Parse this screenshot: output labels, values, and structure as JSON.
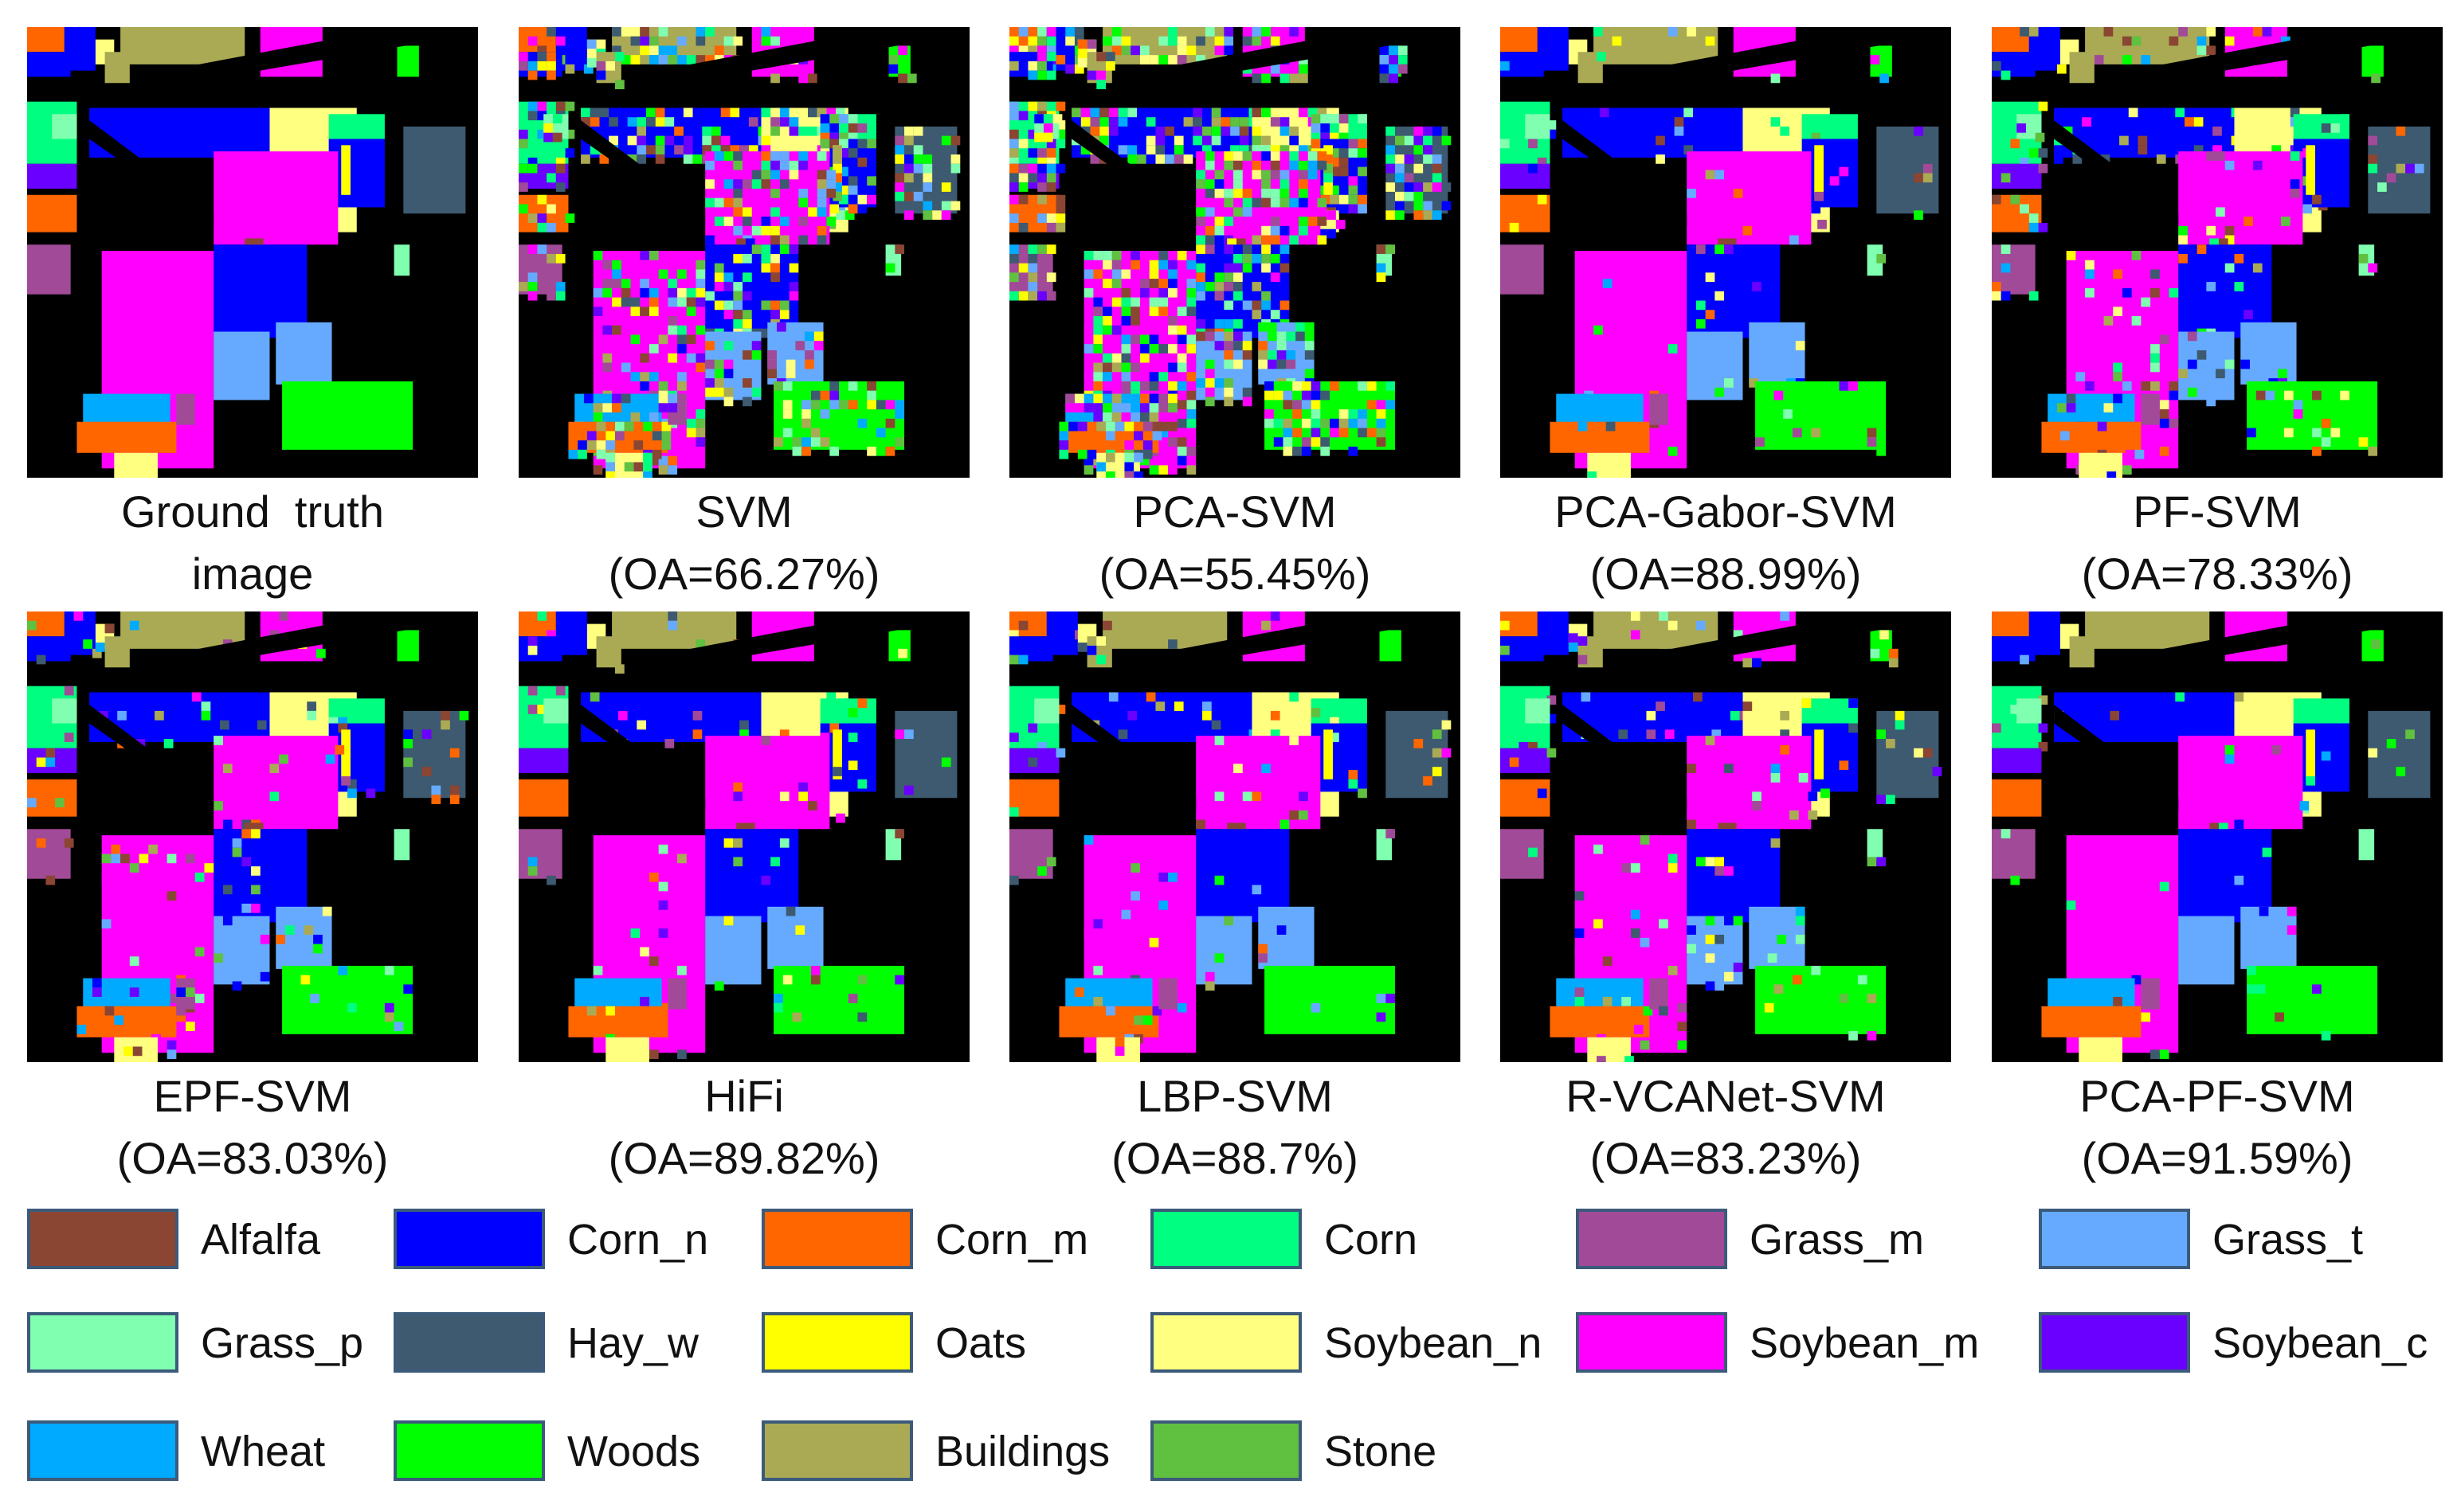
{
  "panels": [
    {
      "title": "Ground  truth",
      "sub": "image",
      "noise": 0
    },
    {
      "title": "SVM",
      "sub": "(OA=66.27%)",
      "noise": 0.45
    },
    {
      "title": "PCA-SVM",
      "sub": "(OA=55.45%)",
      "noise": 0.6
    },
    {
      "title": "PCA-Gabor-SVM",
      "sub": "(OA=88.99%)",
      "noise": 0.06
    },
    {
      "title": "PF-SVM",
      "sub": "(OA=78.33%)",
      "noise": 0.14
    },
    {
      "title": "EPF-SVM",
      "sub": "(OA=83.03%)",
      "noise": 0.1
    },
    {
      "title": "HiFi",
      "sub": "(OA=89.82%)",
      "noise": 0.06
    },
    {
      "title": "LBP-SVM",
      "sub": "(OA=88.7%)",
      "noise": 0.07
    },
    {
      "title": "R-VCANet-SVM",
      "sub": "(OA=83.23%)",
      "noise": 0.1
    },
    {
      "title": "PCA-PF-SVM",
      "sub": "(OA=91.59%)",
      "noise": 0.04
    }
  ],
  "legend": [
    {
      "label": "Alfalfa",
      "color": "#8b4533"
    },
    {
      "label": "Corn_n",
      "color": "#0000ff"
    },
    {
      "label": "Corn_m",
      "color": "#ff6600"
    },
    {
      "label": "Corn",
      "color": "#00ff80"
    },
    {
      "label": "Grass_m",
      "color": "#a14a98"
    },
    {
      "label": "Grass_t",
      "color": "#66aaff"
    },
    {
      "label": "Grass_p",
      "color": "#80ffb0"
    },
    {
      "label": "Hay_w",
      "color": "#3d5a70"
    },
    {
      "label": "Oats",
      "color": "#ffff00"
    },
    {
      "label": "Soybean_n",
      "color": "#ffff80"
    },
    {
      "label": "Soybean_m",
      "color": "#ff00ff"
    },
    {
      "label": "Soybean_c",
      "color": "#6a00ff"
    },
    {
      "label": "Wheat",
      "color": "#00aaff"
    },
    {
      "label": "Woods",
      "color": "#00ff00"
    },
    {
      "label": "Buildings",
      "color": "#aaaa55"
    },
    {
      "label": "Stone",
      "color": "#60c040"
    }
  ]
}
